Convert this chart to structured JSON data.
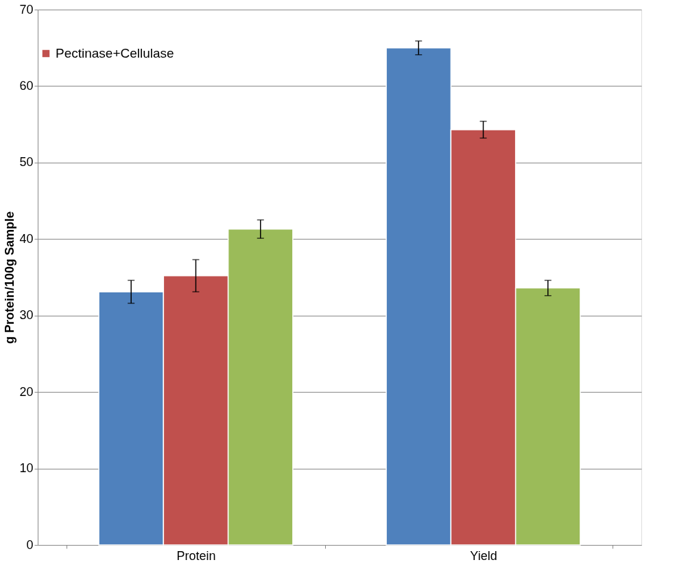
{
  "chart_data": {
    "type": "bar",
    "ylabel": "g Protein/100g Sample",
    "categories": [
      "Protein",
      "Yield"
    ],
    "series": [
      {
        "color": "#4f81bd",
        "values": [
          33.1,
          65.0
        ],
        "errors": [
          1.5,
          0.9
        ]
      },
      {
        "name": "Pectinase+Cellulase",
        "color": "#c0504d",
        "values": [
          35.2,
          54.3
        ],
        "errors": [
          2.1,
          1.1
        ]
      },
      {
        "color": "#9bbb59",
        "values": [
          41.3,
          33.6
        ],
        "errors": [
          1.2,
          1.0
        ]
      }
    ],
    "ylim": [
      0,
      70
    ],
    "yticks": [
      0,
      10,
      20,
      30,
      40,
      50,
      60,
      70
    ],
    "grid": "y",
    "legend": "top left"
  }
}
